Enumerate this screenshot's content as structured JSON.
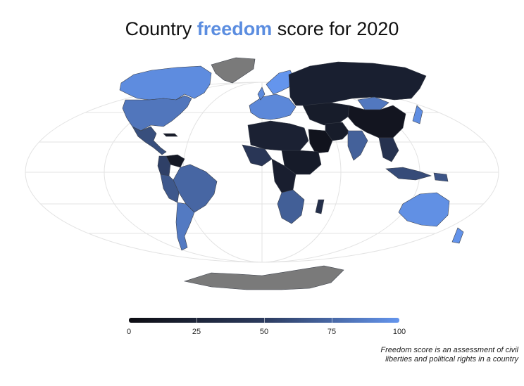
{
  "title": {
    "prefix": "Country ",
    "highlight": "freedom",
    "suffix": " score for 2020",
    "highlight_color": "#5b8de0"
  },
  "colors": {
    "low": "#0d0d12",
    "mid": "#2c3b5e",
    "high": "#6495ed",
    "no_data": "#7a7a7a",
    "graticule": "#e3e3e3"
  },
  "legend": {
    "min": 0,
    "max": 100,
    "ticks": [
      "0",
      "25",
      "50",
      "75",
      "100"
    ]
  },
  "note": {
    "line1": "Freedom score is an assessment of civil",
    "line2": "liberties and political rights in a country"
  }
}
